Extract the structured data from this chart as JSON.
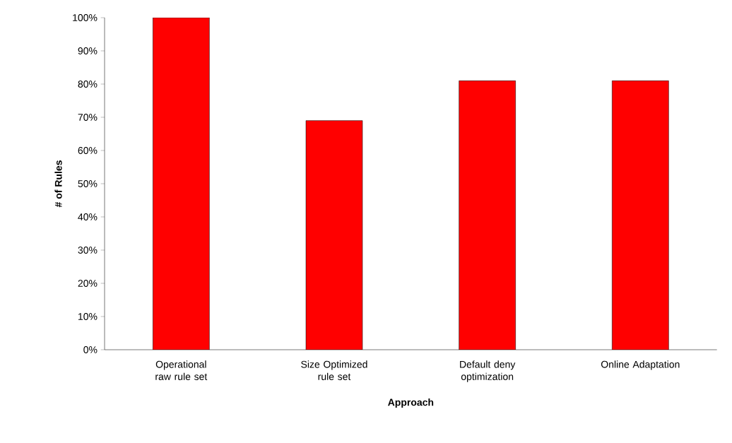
{
  "chart_data": {
    "type": "bar",
    "xlabel": "Approach",
    "ylabel": "# of Rules",
    "categories": [
      "Operational raw rule set",
      "Size Optimized rule set",
      "Default deny optimization",
      "Online Adaptation"
    ],
    "values": [
      100,
      69,
      81,
      81
    ],
    "color": "#ff0000",
    "ylim": [
      0,
      100
    ],
    "yticks": [
      {
        "value": 0,
        "label": "0%"
      },
      {
        "value": 10,
        "label": "10%"
      },
      {
        "value": 20,
        "label": "20%"
      },
      {
        "value": 30,
        "label": "30%"
      },
      {
        "value": 40,
        "label": "40%"
      },
      {
        "value": 50,
        "label": "50%"
      },
      {
        "value": 60,
        "label": "60%"
      },
      {
        "value": 70,
        "label": "70%"
      },
      {
        "value": 80,
        "label": "80%"
      },
      {
        "value": 90,
        "label": "90%"
      },
      {
        "value": 100,
        "label": "100%"
      }
    ],
    "grid": false
  }
}
